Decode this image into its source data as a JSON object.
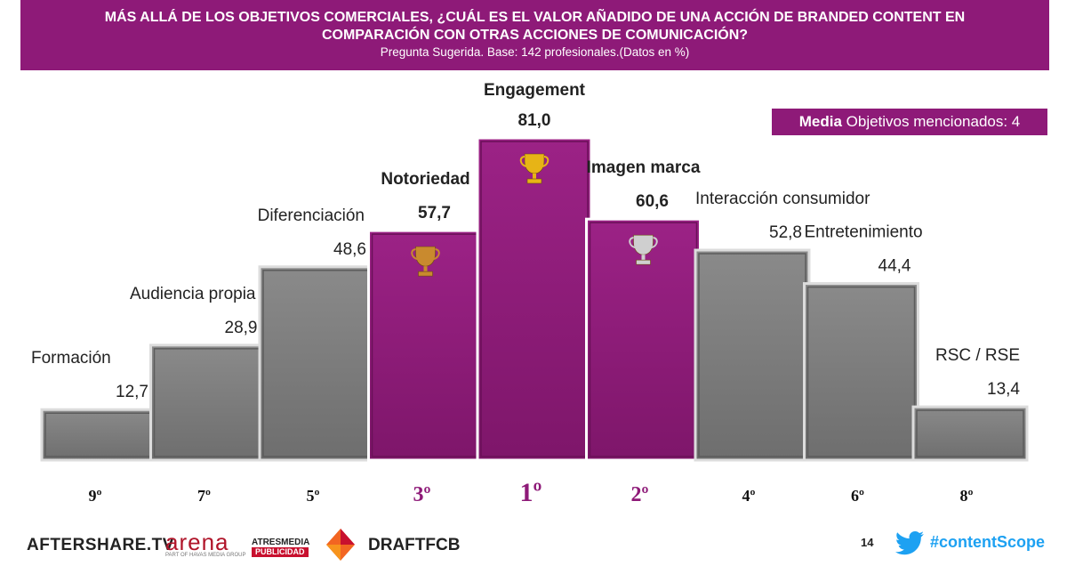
{
  "header": {
    "title_line1": "MÁS ALLÁ DE LOS OBJETIVOS COMERCIALES, ¿CUÁL ES EL VALOR AÑADIDO DE UNA ACCIÓN DE BRANDED CONTENT EN",
    "title_line2": "COMPARACIÓN CON OTRAS ACCIONES DE COMUNICACIÓN?",
    "subtitle": "Pregunta Sugerida. Base: 142 profesionales.(Datos en %)"
  },
  "media_badge": {
    "bold": "Media",
    "text": " Objetivos mencionados: 4"
  },
  "colors": {
    "accent": "#8e1a78",
    "grey_bar": "#7f7f7f",
    "twitter": "#1da1f2"
  },
  "chart_data": {
    "type": "bar",
    "categories": [
      "Formación",
      "Audiencia propia",
      "Diferenciación",
      "Notoriedad",
      "Engagement",
      "Imagen marca",
      "Interacción consumidor",
      "Entretenimiento",
      "RSC / RSE"
    ],
    "values": [
      12.7,
      28.9,
      48.6,
      57.7,
      81.0,
      60.6,
      52.8,
      44.4,
      13.4
    ],
    "value_labels": [
      "12,7",
      "28,9",
      "48,6",
      "57,7",
      "81,0",
      "60,6",
      "52,8",
      "44,4",
      "13,4"
    ],
    "ranks": [
      "9º",
      "7º",
      "5º",
      "3º",
      "1º",
      "2º",
      "4º",
      "6º",
      "8º"
    ],
    "highlighted": [
      false,
      false,
      false,
      true,
      true,
      true,
      false,
      false,
      false
    ],
    "trophies": [
      "",
      "",
      "",
      "bronze-trophy-icon",
      "gold-trophy-icon",
      "silver-trophy-icon",
      "",
      "",
      ""
    ],
    "ylim": [
      0,
      81.0
    ],
    "grid": false,
    "legend": "none"
  },
  "footer": {
    "aftershare": "AFTERSHARE.TV",
    "arena": "arena",
    "arena_sub": "PART OF HAVAS MEDIA GROUP",
    "atresmedia": "ATRESMEDIA",
    "publicidad": "PUBLICIDAD",
    "draftfcb": "DRAFTFCB",
    "page_number": "14",
    "hashtag": "#contentScope"
  }
}
